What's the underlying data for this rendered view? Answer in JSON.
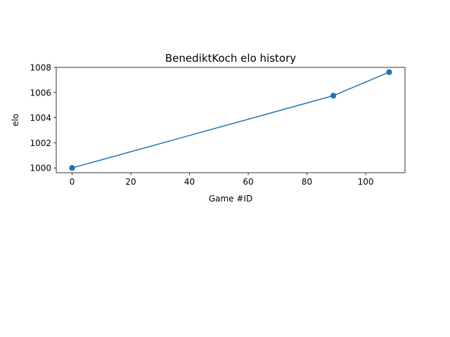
{
  "chart_data": {
    "type": "line",
    "title": "BenediktKoch elo history",
    "xlabel": "Game #ID",
    "ylabel": "elo",
    "xlim": [
      -5.4,
      113.4
    ],
    "ylim": [
      999.62,
      1008.0
    ],
    "xticks": [
      0,
      20,
      40,
      60,
      80,
      100
    ],
    "xtick_labels": [
      "0",
      "20",
      "40",
      "60",
      "80",
      "100"
    ],
    "yticks": [
      1000,
      1002,
      1004,
      1006,
      1008
    ],
    "ytick_labels": [
      "1000",
      "1002",
      "1004",
      "1006",
      "1008"
    ],
    "grid": false,
    "legend": "none",
    "series": [
      {
        "x": [
          0,
          89,
          108
        ],
        "y": [
          1000.0,
          1005.75,
          1007.62
        ],
        "color": "#1f77b4",
        "marker": "circle"
      }
    ]
  }
}
